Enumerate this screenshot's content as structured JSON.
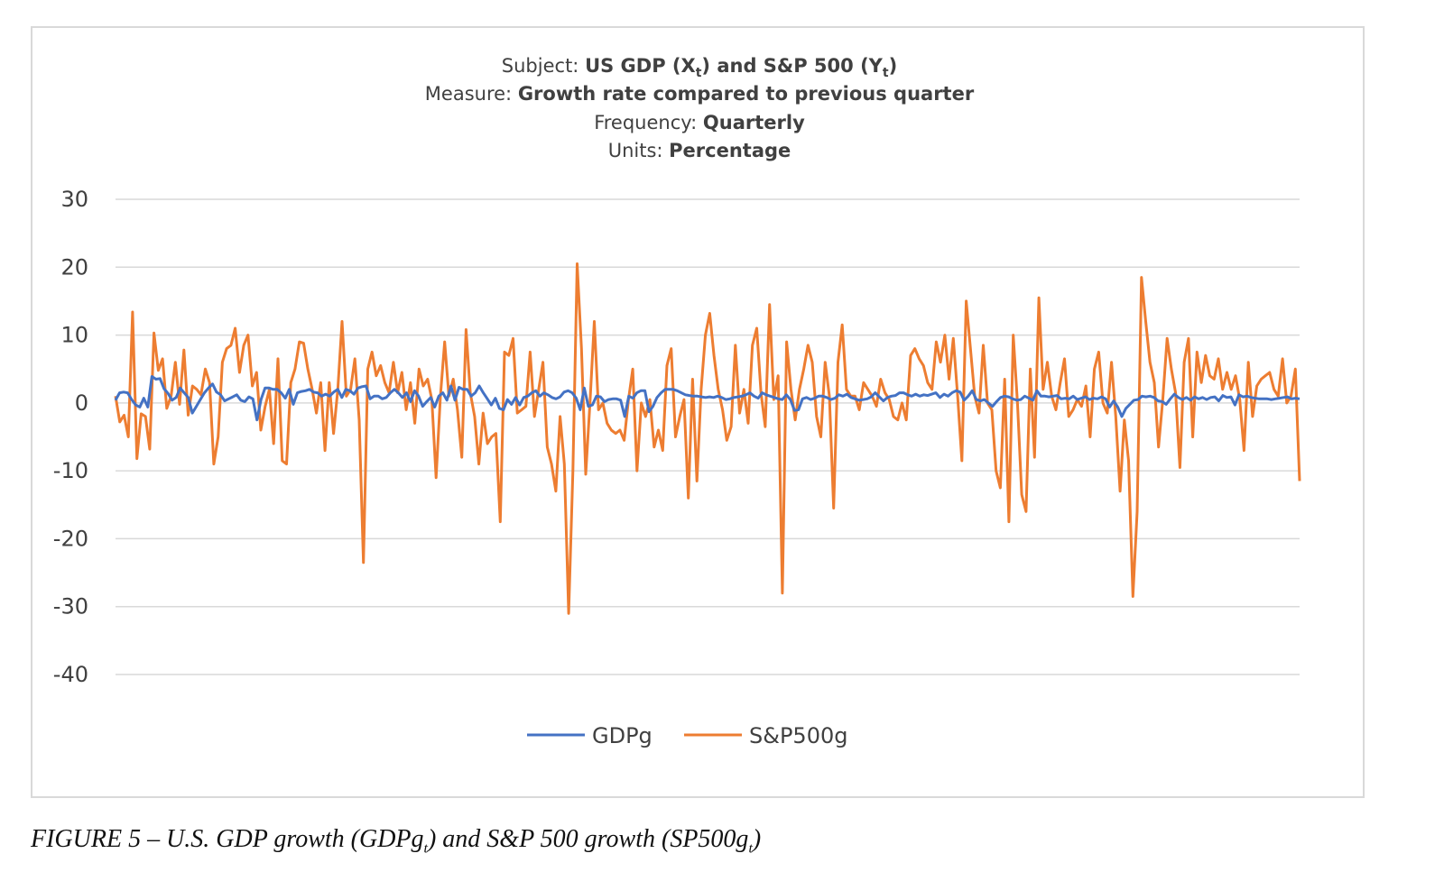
{
  "header": {
    "subject_label": "Subject: ",
    "subject_value_a": "US GDP (X",
    "subject_sub1": "t",
    "subject_value_b": ") and S&P 500 (Y",
    "subject_sub2": "t",
    "subject_value_c": ")",
    "measure_label": "Measure: ",
    "measure_value": "Growth rate compared to previous quarter",
    "frequency_label": "Frequency: ",
    "frequency_value": "Quarterly",
    "units_label": "Units: ",
    "units_value": "Percentage"
  },
  "caption": {
    "text_a": "FIGURE 5 – U.S. GDP growth (GDPg",
    "sub1": "t",
    "text_b": ") and S&P 500 growth (SP500g",
    "sub2": "t",
    "text_c": ")"
  },
  "chart_data": {
    "type": "line",
    "title": "",
    "xlabel": "",
    "ylabel": "",
    "ylim": [
      -40,
      30
    ],
    "yticks": [
      30,
      20,
      10,
      0,
      -10,
      -20,
      -30,
      -40
    ],
    "grid": true,
    "legend_placement": "bottom",
    "colors": {
      "GDPg": "#4472c4",
      "S&P500g": "#ed7d31",
      "grid": "#d9d9d9"
    },
    "series": [
      {
        "name": "GDPg",
        "values": [
          0.4,
          1.5,
          1.6,
          1.5,
          0.5,
          -0.3,
          -0.6,
          0.7,
          -0.6,
          3.9,
          3.5,
          3.6,
          2.1,
          1.4,
          0.4,
          0.8,
          2.2,
          1.5,
          0.8,
          -1.5,
          -0.5,
          0.5,
          1.5,
          2.2,
          2.8,
          1.6,
          1.2,
          0.3,
          0.6,
          0.9,
          1.2,
          0.4,
          0.2,
          0.9,
          0.6,
          -2.5,
          0.5,
          2.2,
          2.2,
          2.0,
          2.0,
          1.5,
          0.7,
          2.0,
          -0.2,
          1.5,
          1.7,
          1.8,
          2.0,
          1.6,
          1.5,
          1.0,
          1.3,
          1.0,
          1.6,
          2.0,
          0.8,
          2.0,
          1.8,
          1.3,
          2.2,
          2.4,
          2.5,
          0.6,
          1.0,
          1.0,
          0.6,
          0.8,
          1.5,
          2.0,
          1.5,
          0.8,
          1.5,
          0.2,
          1.8,
          1.0,
          -0.5,
          0.2,
          0.8,
          -0.6,
          1.0,
          1.5,
          0.4,
          2.5,
          0.4,
          2.3,
          2.0,
          2.0,
          1.0,
          1.5,
          2.5,
          1.5,
          0.6,
          -0.3,
          0.7,
          -0.8,
          -1.0,
          0.5,
          -0.2,
          0.8,
          -0.3,
          0.8,
          1.0,
          1.5,
          1.8,
          1.0,
          1.5,
          1.2,
          0.8,
          0.6,
          0.9,
          1.6,
          1.8,
          1.5,
          0.7,
          -1.0,
          2.2,
          -0.5,
          -0.3,
          1.0,
          0.9,
          0.2,
          0.5,
          0.6,
          0.6,
          0.4,
          -2.0,
          1.0,
          0.7,
          1.5,
          1.8,
          1.8,
          -1.3,
          -0.5,
          0.8,
          1.5,
          2.0,
          2.0,
          2.0,
          1.8,
          1.5,
          1.2,
          1.1,
          1.0,
          1.0,
          0.9,
          0.8,
          0.9,
          0.8,
          1.0,
          0.8,
          0.5,
          0.6,
          0.8,
          0.9,
          1.0,
          1.2,
          1.5,
          1.0,
          0.7,
          1.5,
          1.2,
          1.0,
          0.8,
          0.6,
          0.5,
          1.2,
          0.5,
          -1.1,
          -1.0,
          0.6,
          0.8,
          0.5,
          0.7,
          1.0,
          1.0,
          0.8,
          0.5,
          0.7,
          1.2,
          1.0,
          1.3,
          0.8,
          0.6,
          0.4,
          0.5,
          0.6,
          0.9,
          1.5,
          0.9,
          0.3,
          0.8,
          1.0,
          1.1,
          1.5,
          1.5,
          1.2,
          1.0,
          1.3,
          1.0,
          1.2,
          1.1,
          1.3,
          1.5,
          0.8,
          1.3,
          1.0,
          1.5,
          1.8,
          1.6,
          0.4,
          1.0,
          1.8,
          0.5,
          0.3,
          0.5,
          0.0,
          -0.5,
          0.2,
          0.8,
          1.0,
          0.9,
          0.6,
          0.4,
          0.5,
          1.0,
          0.7,
          0.4,
          1.8,
          1.0,
          1.0,
          0.9,
          1.0,
          1.1,
          0.6,
          0.7,
          0.6,
          1.0,
          0.5,
          0.7,
          0.9,
          0.5,
          0.7,
          0.6,
          0.9,
          0.6,
          -0.6,
          0.3,
          -0.6,
          -2.0,
          -0.8,
          -0.2,
          0.4,
          0.5,
          1.0,
          0.9,
          1.0,
          0.8,
          0.3,
          0.2,
          -0.2,
          0.6,
          1.3,
          0.8,
          0.5,
          0.8,
          0.4,
          0.9,
          0.6,
          0.8,
          0.5,
          0.8,
          0.9,
          0.3,
          1.1,
          0.8,
          0.9,
          -0.3,
          1.2,
          0.9,
          1.0,
          0.8,
          0.7,
          0.6,
          0.6,
          0.6,
          0.5,
          0.6,
          0.7,
          0.8,
          0.9,
          0.6,
          0.7,
          0.6
        ]
      },
      {
        "name": "S&P500g",
        "values": [
          1.0,
          -2.8,
          -1.8,
          -5.0,
          13.4,
          -8.2,
          -1.6,
          -2.0,
          -6.8,
          10.3,
          4.8,
          6.5,
          -0.8,
          1.0,
          6.0,
          -0.2,
          7.8,
          -1.8,
          2.5,
          2.0,
          1.2,
          5.0,
          3.0,
          -9.0,
          -5.0,
          6.0,
          8.0,
          8.5,
          11.0,
          4.5,
          8.5,
          10.0,
          2.5,
          4.5,
          -4.0,
          -0.5,
          2.0,
          -6.0,
          6.5,
          -8.5,
          -9.0,
          3.0,
          5.0,
          9.0,
          8.8,
          5.0,
          2.0,
          -1.5,
          3.0,
          -7.0,
          3.0,
          -4.5,
          2.0,
          12.0,
          1.0,
          2.0,
          6.5,
          -2.5,
          -23.5,
          5.0,
          7.5,
          4.0,
          5.5,
          3.0,
          1.5,
          6.0,
          1.5,
          4.5,
          -1.0,
          3.0,
          -3.0,
          5.0,
          2.5,
          3.5,
          0.5,
          -11.0,
          1.0,
          9.0,
          1.0,
          3.5,
          -1.0,
          -8.0,
          10.8,
          1.5,
          -2.0,
          -9.0,
          -1.5,
          -6.0,
          -5.0,
          -4.5,
          -17.5,
          7.5,
          7.0,
          9.5,
          -1.5,
          -1.0,
          -0.5,
          7.5,
          -2.0,
          2.0,
          6.0,
          -6.5,
          -9.0,
          -13.0,
          -2.0,
          -9.0,
          -31.0,
          -10.0,
          20.5,
          8.0,
          -10.5,
          0.0,
          12.0,
          -1.0,
          0.0,
          -3.0,
          -4.0,
          -4.5,
          -4.0,
          -5.5,
          0.5,
          5.0,
          -10.0,
          0.0,
          -2.0,
          0.5,
          -6.5,
          -4.0,
          -7.0,
          5.5,
          8.0,
          -5.0,
          -2.0,
          0.5,
          -14.0,
          3.5,
          -11.5,
          2.0,
          10.0,
          13.2,
          7.0,
          2.0,
          -1.0,
          -5.5,
          -3.5,
          8.5,
          -1.5,
          2.0,
          -3.0,
          8.5,
          11.0,
          1.5,
          -3.5,
          14.5,
          0.5,
          4.0,
          -28.0,
          9.0,
          2.0,
          -2.5,
          2.0,
          5.0,
          8.5,
          6.0,
          -2.0,
          -5.0,
          6.0,
          1.0,
          -15.5,
          6.0,
          11.5,
          2.0,
          1.0,
          1.0,
          -1.0,
          3.0,
          2.0,
          1.0,
          -0.5,
          3.5,
          1.5,
          0.5,
          -2.0,
          -2.5,
          0.0,
          -2.5,
          7.0,
          8.0,
          6.5,
          5.5,
          3.0,
          2.0,
          9.0,
          6.0,
          10.0,
          3.5,
          9.5,
          1.0,
          -8.5,
          15.0,
          8.0,
          1.0,
          -1.5,
          8.5,
          0.0,
          -1.0,
          -10.0,
          -12.5,
          3.5,
          -17.5,
          10.0,
          0.0,
          -13.5,
          -16.0,
          5.0,
          -8.0,
          15.5,
          2.0,
          6.0,
          1.0,
          -1.0,
          3.0,
          6.5,
          -2.0,
          -1.0,
          0.5,
          -0.5,
          2.5,
          -5.0,
          5.0,
          7.5,
          0.0,
          -1.5,
          6.0,
          -2.0,
          -13.0,
          -2.5,
          -8.5,
          -28.5,
          -16.0,
          18.5,
          12.0,
          6.0,
          3.0,
          -6.5,
          0.5,
          9.5,
          5.0,
          1.5,
          -9.5,
          6.0,
          9.5,
          -5.0,
          7.5,
          3.0,
          7.0,
          4.0,
          3.5,
          6.5,
          2.0,
          4.5,
          2.0,
          4.0,
          0.5,
          -7.0,
          6.0,
          -2.0,
          2.5,
          3.5,
          4.0,
          4.5,
          2.0,
          1.0,
          6.5,
          0.0,
          1.0,
          5.0,
          -11.5
        ]
      }
    ]
  }
}
